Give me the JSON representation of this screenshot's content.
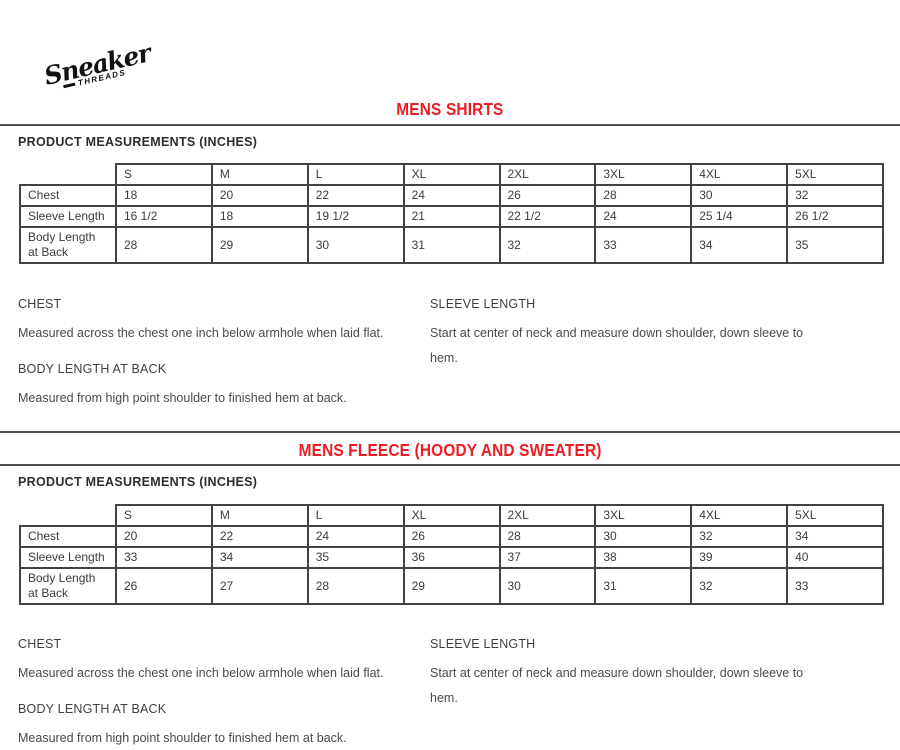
{
  "logo": {
    "name": "Sneaker",
    "subname": "THREADS"
  },
  "colors": {
    "accent_red": "#ed1c24",
    "rule_gray": "#4f4f4f",
    "table_border": "#424242"
  },
  "sections": [
    {
      "title": "MENS SHIRTS",
      "measurements_label": "PRODUCT MEASUREMENTS (INCHES)",
      "table": {
        "sizes": [
          "S",
          "M",
          "L",
          "XL",
          "2XL",
          "3XL",
          "4XL",
          "5XL"
        ],
        "rows": [
          {
            "label": "Chest",
            "values": [
              "18",
              "20",
              "22",
              "24",
              "26",
              "28",
              "30",
              "32"
            ]
          },
          {
            "label": "Sleeve Length",
            "values": [
              "16 1/2",
              "18",
              "19 1/2",
              "21",
              "22 1/2",
              "24",
              "25 1/4",
              "26 1/2"
            ]
          },
          {
            "label": "Body Length at Back",
            "values": [
              "28",
              "29",
              "30",
              "31",
              "32",
              "33",
              "34",
              "35"
            ]
          }
        ]
      },
      "definitions": {
        "left": [
          {
            "term": "CHEST",
            "description": "Measured across the chest one inch below armhole when laid flat."
          },
          {
            "term": "BODY LENGTH AT BACK",
            "description": "Measured from high point shoulder to finished hem at back."
          }
        ],
        "right": [
          {
            "term": "SLEEVE LENGTH",
            "description": "Start at center of neck and measure down shoulder, down sleeve to hem."
          }
        ]
      }
    },
    {
      "title": "MENS FLEECE (HOODY AND SWEATER)",
      "measurements_label": "PRODUCT MEASUREMENTS (INCHES)",
      "table": {
        "sizes": [
          "S",
          "M",
          "L",
          "XL",
          "2XL",
          "3XL",
          "4XL",
          "5XL"
        ],
        "rows": [
          {
            "label": "Chest",
            "values": [
              "20",
              "22",
              "24",
              "26",
              "28",
              "30",
              "32",
              "34"
            ]
          },
          {
            "label": "Sleeve Length",
            "values": [
              "33",
              "34",
              "35",
              "36",
              "37",
              "38",
              "39",
              "40"
            ]
          },
          {
            "label": "Body Length at Back",
            "values": [
              "26",
              "27",
              "28",
              "29",
              "30",
              "31",
              "32",
              "33"
            ]
          }
        ]
      },
      "definitions": {
        "left": [
          {
            "term": "CHEST",
            "description": "Measured across the chest one inch below armhole when laid flat."
          },
          {
            "term": "BODY LENGTH AT BACK",
            "description": "Measured from high point shoulder to finished hem at back."
          }
        ],
        "right": [
          {
            "term": "SLEEVE LENGTH",
            "description": "Start at center of neck and measure down shoulder, down sleeve to hem."
          }
        ]
      }
    }
  ]
}
